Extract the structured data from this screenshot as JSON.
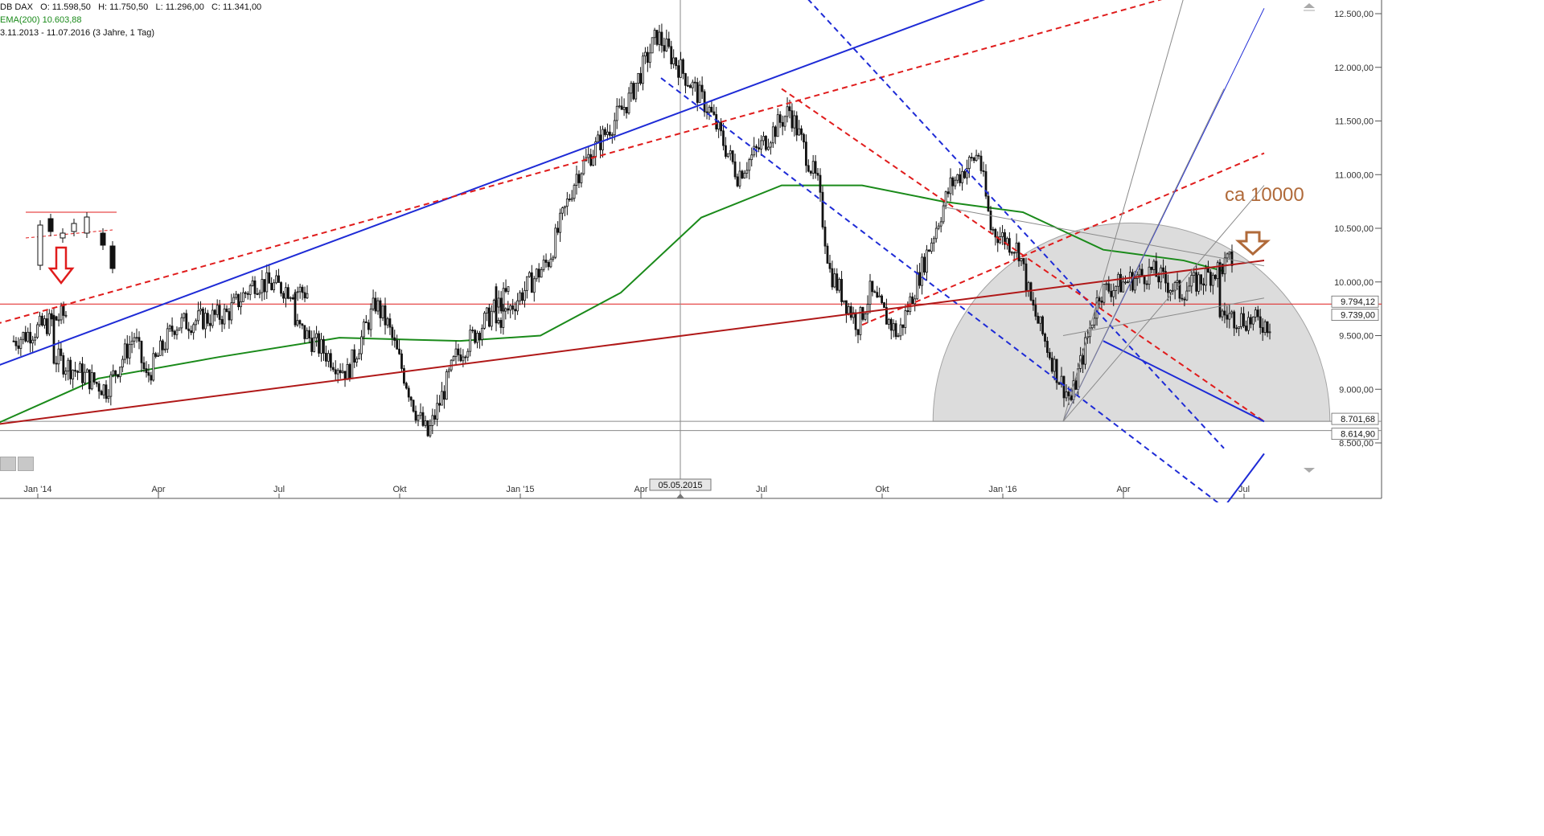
{
  "header": {
    "instrument_line": {
      "name": "DB DAX",
      "open": "O: 11.598,50",
      "high": "H: 11.750,50",
      "low": "L: 11.296,00",
      "close": "C: 11.341,00"
    },
    "ema_line": "EMA(200)  10.603,88",
    "range_line": "3.11.2013 - 11.07.2016 (3 Jahre, 1 Tag)"
  },
  "annotation": {
    "text": "ca 10000",
    "color": "#b06a3a"
  },
  "colors": {
    "ema": "#1a8a1a",
    "blue": "#1e2bd6",
    "red": "#e01c1c",
    "darkred": "#b01818",
    "gray": "#8a8a8a",
    "circle_fill": "#d9d9d9",
    "arrow_red": "#e01c1c",
    "arrow_brown": "#b06a3a"
  },
  "chart_data": {
    "type": "candlestick",
    "ylim": [
      8350,
      12650
    ],
    "y_ticks": [
      "12.500,00",
      "12.000,00",
      "11.500,00",
      "11.000,00",
      "10.500,00",
      "10.000,00",
      "9.500,00",
      "9.000,00",
      "8.500,00"
    ],
    "y_tick_values": [
      12500,
      12000,
      11500,
      11000,
      10500,
      10000,
      9500,
      9000,
      8500
    ],
    "x_ticks": [
      "Jan '14",
      "Apr",
      "Jul",
      "Okt",
      "Jan '15",
      "Apr",
      "Jul",
      "Okt",
      "Jan '16",
      "Apr",
      "Jul"
    ],
    "x_tick_dates": [
      "2014-01",
      "2014-04",
      "2014-07",
      "2014-10",
      "2015-01",
      "2015-04",
      "2015-07",
      "2015-10",
      "2016-01",
      "2016-04",
      "2016-07"
    ],
    "cursor_date_label": "05.05.2015",
    "price_labels": [
      {
        "text": "9.794,12",
        "value": 9794.12
      },
      {
        "text": "9.739,00",
        "value": 9739.0
      },
      {
        "text": "8.701,68",
        "value": 8701.68
      },
      {
        "text": "8.614,90",
        "value": 8614.9
      }
    ],
    "anchors": [
      [
        "2013-12",
        9450
      ],
      [
        "2014-01",
        9700
      ],
      [
        "2014-01",
        9300
      ],
      [
        "2014-02",
        9000
      ],
      [
        "2014-03",
        9500
      ],
      [
        "2014-03",
        9100
      ],
      [
        "2014-04",
        9600
      ],
      [
        "2014-05",
        9700
      ],
      [
        "2014-06",
        10000
      ],
      [
        "2014-07",
        9900
      ],
      [
        "2014-07",
        9600
      ],
      [
        "2014-08",
        9150
      ],
      [
        "2014-09",
        9800
      ],
      [
        "2014-09",
        9600
      ],
      [
        "2014-10",
        8800
      ],
      [
        "2014-10",
        8570
      ],
      [
        "2014-11",
        9300
      ],
      [
        "2014-12",
        9900
      ],
      [
        "2014-12",
        9600
      ],
      [
        "2015-01",
        10200
      ],
      [
        "2015-02",
        11000
      ],
      [
        "2015-03",
        11700
      ],
      [
        "2015-04",
        12300
      ],
      [
        "2015-05",
        11600
      ],
      [
        "2015-06",
        11000
      ],
      [
        "2015-07",
        11600
      ],
      [
        "2015-08",
        10900
      ],
      [
        "2015-08",
        10100
      ],
      [
        "2015-09",
        9600
      ],
      [
        "2015-09",
        9900
      ],
      [
        "2015-10",
        9500
      ],
      [
        "2015-11",
        10900
      ],
      [
        "2015-12",
        11200
      ],
      [
        "2015-12",
        10500
      ],
      [
        "2016-01",
        10300
      ],
      [
        "2016-01",
        9800
      ],
      [
        "2016-02",
        9100
      ],
      [
        "2016-02",
        8900
      ],
      [
        "2016-03",
        9900
      ],
      [
        "2016-04",
        10100
      ],
      [
        "2016-05",
        9900
      ],
      [
        "2016-06",
        10200
      ],
      [
        "2016-06",
        9700
      ],
      [
        "2016-07",
        9600
      ]
    ],
    "ema200": [
      [
        "2013-11",
        8600
      ],
      [
        "2014-02",
        9100
      ],
      [
        "2014-05",
        9300
      ],
      [
        "2014-08",
        9480
      ],
      [
        "2014-11",
        9450
      ],
      [
        "2015-01",
        9500
      ],
      [
        "2015-03",
        9900
      ],
      [
        "2015-05",
        10600
      ],
      [
        "2015-07",
        10900
      ],
      [
        "2015-09",
        10900
      ],
      [
        "2015-11",
        10750
      ],
      [
        "2016-01",
        10650
      ],
      [
        "2016-03",
        10300
      ],
      [
        "2016-05",
        10200
      ],
      [
        "2016-06",
        10100
      ]
    ],
    "horizontal_levels": [
      {
        "value": 9794.12,
        "color": "red"
      },
      {
        "value": 8701.68,
        "color": "gray"
      },
      {
        "value": 8614.9,
        "color": "gray"
      }
    ],
    "trendlines": [
      {
        "from": [
          "2013-11",
          9150
        ],
        "to": [
          "2016-07",
          13600
        ],
        "color": "blue",
        "style": "solid"
      },
      {
        "from": [
          "2013-11",
          9560
        ],
        "to": [
          "2016-07",
          12900
        ],
        "color": "red",
        "style": "dashed"
      },
      {
        "from": [
          "2015-07",
          12900
        ],
        "to": [
          "2016-06",
          8450
        ],
        "color": "blue",
        "style": "dashed"
      },
      {
        "from": [
          "2015-04",
          11900
        ],
        "to": [
          "2016-06",
          7900
        ],
        "color": "blue",
        "style": "dashed"
      },
      {
        "from": [
          "2015-07",
          11800
        ],
        "to": [
          "2016-07",
          8700
        ],
        "color": "red",
        "style": "dashed"
      },
      {
        "from": [
          "2015-09",
          9600
        ],
        "to": [
          "2016-07",
          11200
        ],
        "color": "red",
        "style": "dashed"
      },
      {
        "from": [
          "2013-11",
          8650
        ],
        "to": [
          "2016-07",
          10200
        ],
        "color": "darkred",
        "style": "solid"
      },
      {
        "from": [
          "2016-03",
          9450
        ],
        "to": [
          "2016-07",
          8700
        ],
        "color": "blue",
        "style": "solid"
      },
      {
        "from": [
          "2016-06",
          7900
        ],
        "to": [
          "2016-07",
          8400
        ],
        "color": "blue",
        "style": "solid"
      },
      {
        "from": [
          "2016-02",
          8700
        ],
        "to": [
          "2016-07",
          12550
        ],
        "color": "blue",
        "style": "solid-thin"
      },
      {
        "from": [
          "2015-11",
          10700
        ],
        "to": [
          "2016-07",
          10150
        ],
        "color": "gray",
        "style": "solid"
      },
      {
        "from": [
          "2016-02",
          9500
        ],
        "to": [
          "2016-07",
          9850
        ],
        "color": "gray",
        "style": "solid"
      }
    ],
    "fan_lines": [
      {
        "from": [
          "2016-02",
          8700
        ],
        "to": [
          "2016-05",
          12650
        ]
      },
      {
        "from": [
          "2016-02",
          8700
        ],
        "to": [
          "2016-06",
          11800
        ]
      },
      {
        "from": [
          "2016-02",
          8700
        ],
        "to": [
          "2016-07",
          10900
        ]
      }
    ],
    "half_circle": {
      "center": [
        "2016-04",
        8701.68
      ],
      "top_value": 10550
    }
  }
}
